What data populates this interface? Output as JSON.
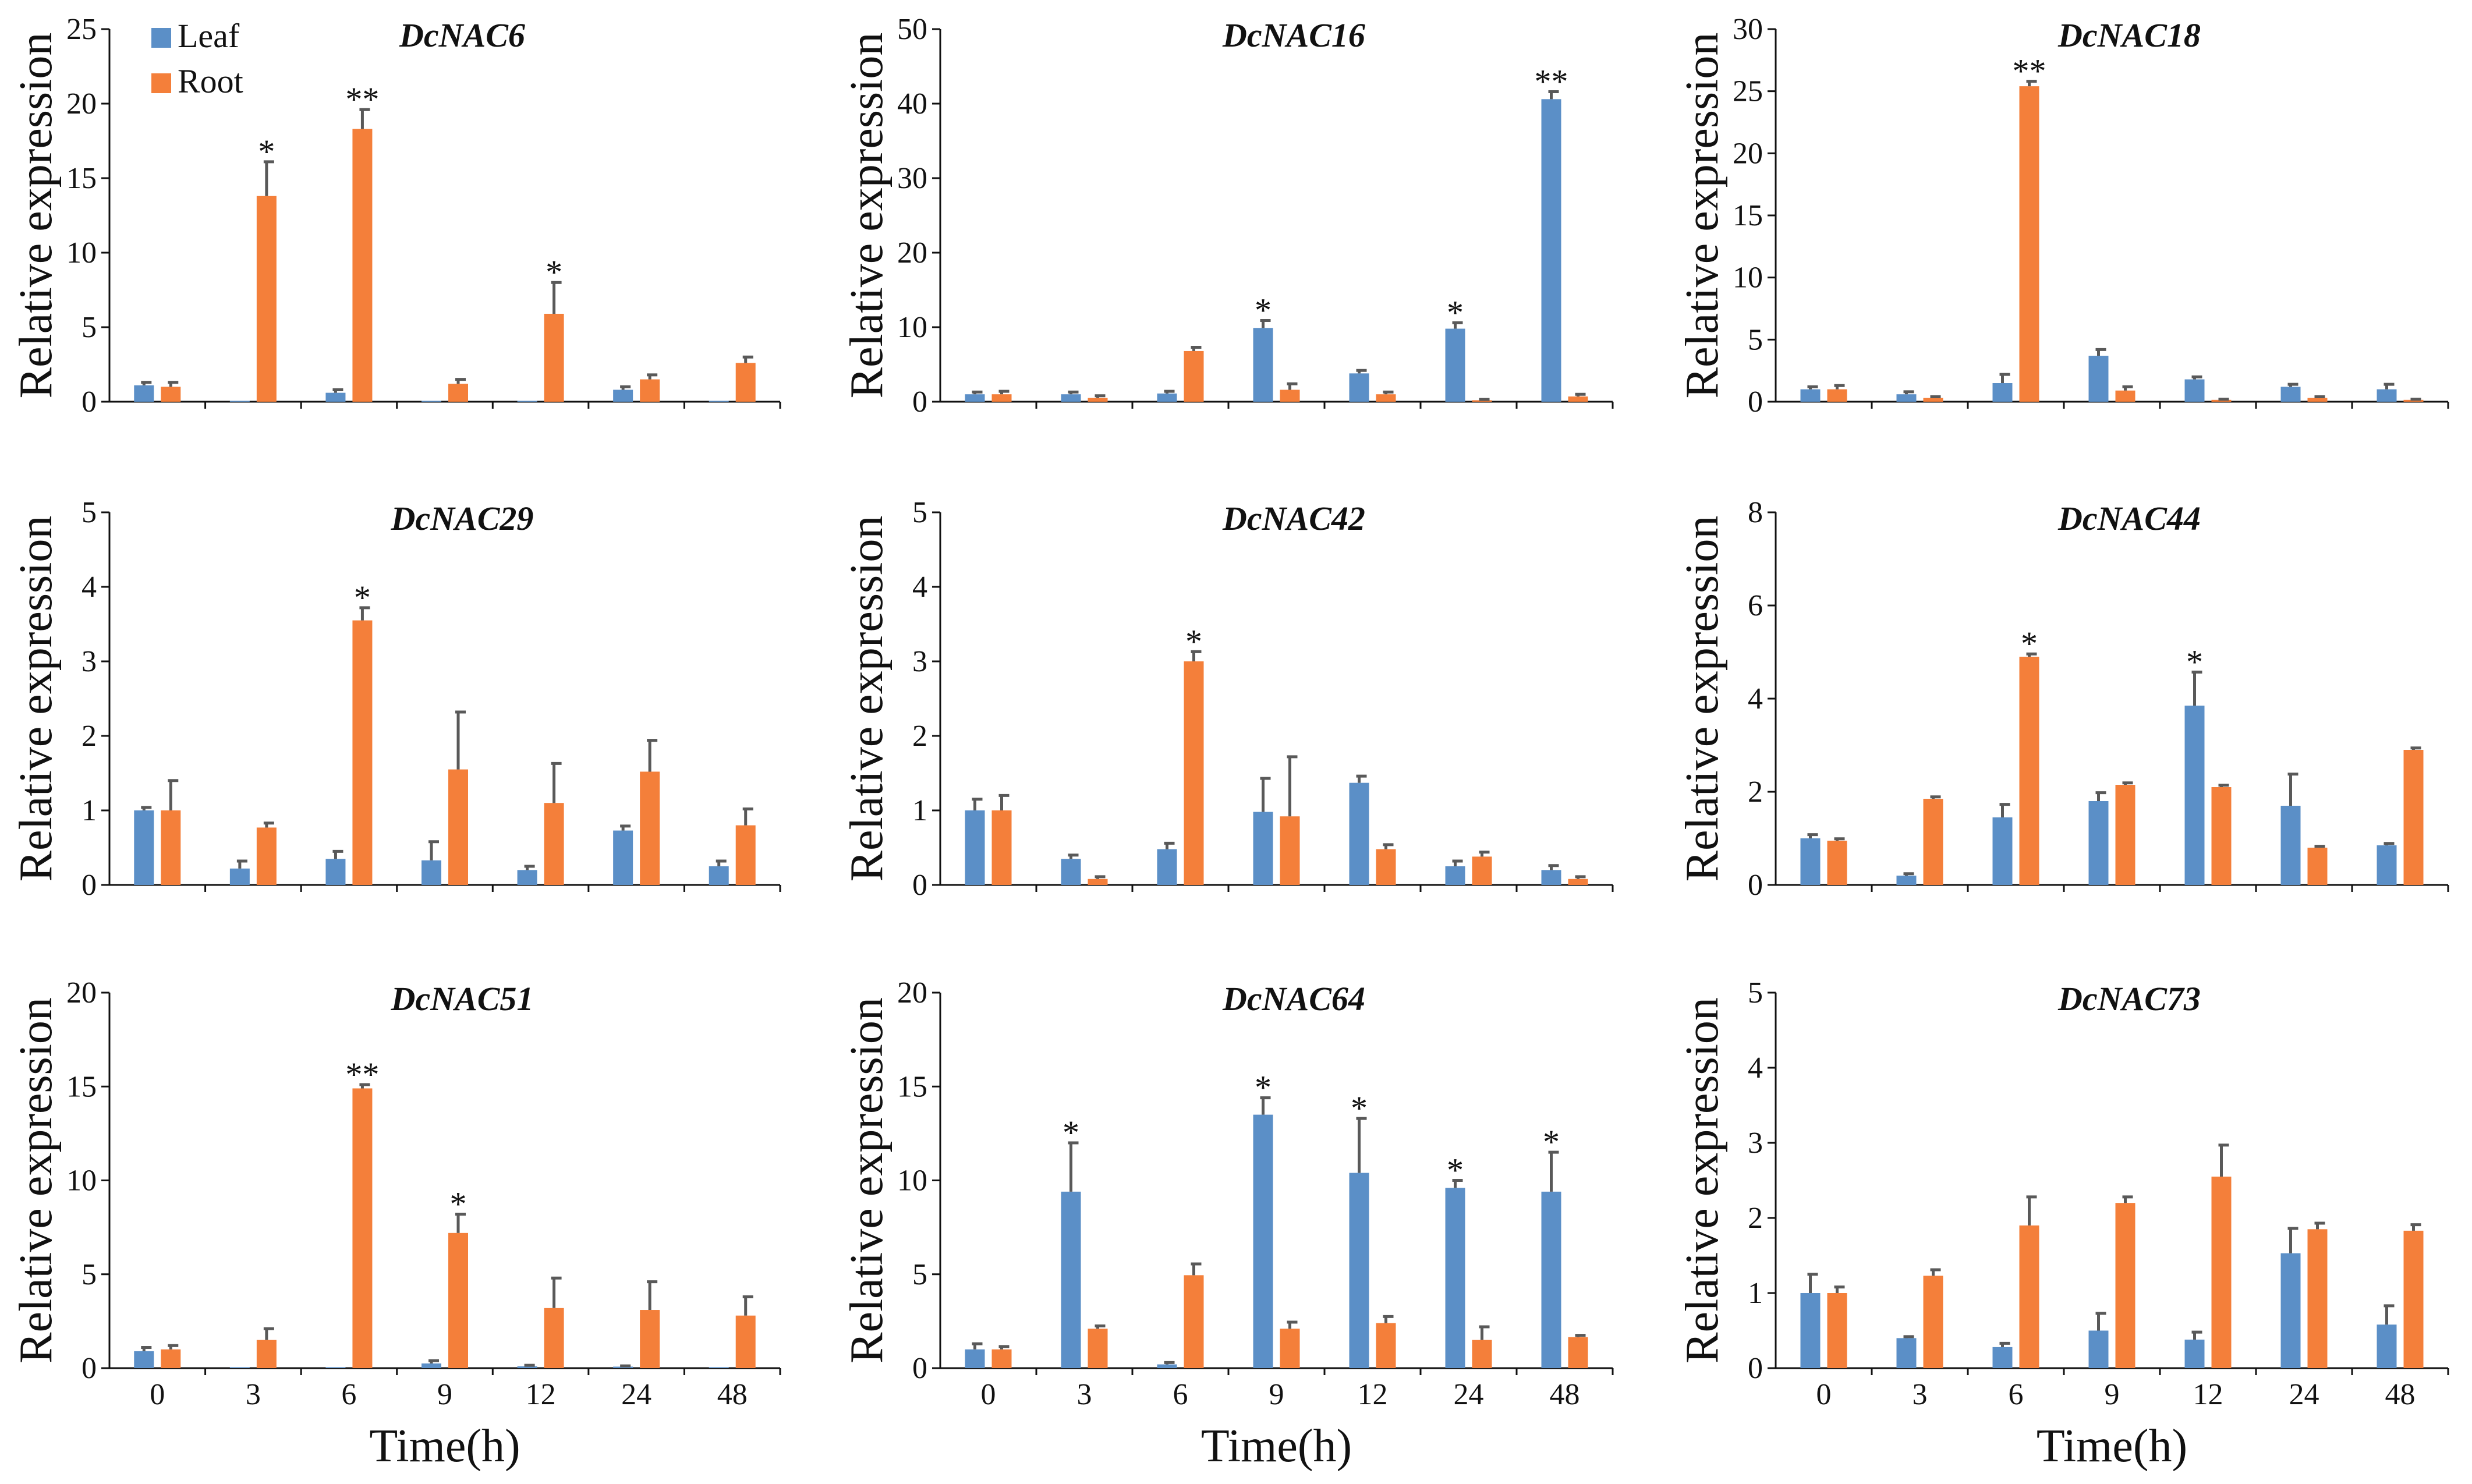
{
  "figure": {
    "legend": [
      {
        "name": "Leaf",
        "color": "#5B8FC7"
      },
      {
        "name": "Root",
        "color": "#F47F3A"
      }
    ],
    "error_bar_color": "#595959"
  },
  "chart_data": [
    {
      "type": "bar",
      "title": "DcNAC6",
      "ylabel": "Relative expression",
      "xlabel": "",
      "categories": [
        "0",
        "3",
        "6",
        "9",
        "12",
        "24",
        "48"
      ],
      "ylim": [
        0,
        25
      ],
      "yticks": [
        "0",
        "5",
        "10",
        "15",
        "20",
        "25"
      ],
      "series": [
        {
          "name": "Leaf",
          "values": [
            1.1,
            0.05,
            0.6,
            0.05,
            0.05,
            0.8,
            0.05
          ],
          "errors": [
            0.2,
            0.0,
            0.2,
            0.0,
            0.0,
            0.2,
            0.0
          ]
        },
        {
          "name": "Root",
          "values": [
            1.0,
            13.8,
            18.3,
            1.2,
            5.9,
            1.5,
            2.6
          ],
          "errors": [
            0.3,
            2.3,
            1.3,
            0.3,
            2.1,
            0.3,
            0.4
          ]
        }
      ],
      "annotations": [
        {
          "category": "3",
          "series": "Root",
          "text": "*"
        },
        {
          "category": "6",
          "series": "Root",
          "text": "**"
        },
        {
          "category": "12",
          "series": "Root",
          "text": "*"
        }
      ]
    },
    {
      "type": "bar",
      "title": "DcNAC16",
      "ylabel": "Relative expression",
      "xlabel": "",
      "categories": [
        "0",
        "3",
        "6",
        "9",
        "12",
        "24",
        "48"
      ],
      "ylim": [
        0,
        50
      ],
      "yticks": [
        "0",
        "10",
        "20",
        "30",
        "40",
        "50"
      ],
      "series": [
        {
          "name": "Leaf",
          "values": [
            1.0,
            1.0,
            1.1,
            9.9,
            3.8,
            9.8,
            40.6
          ],
          "errors": [
            0.3,
            0.3,
            0.3,
            1.0,
            0.4,
            0.8,
            1.0
          ]
        },
        {
          "name": "Root",
          "values": [
            1.0,
            0.5,
            6.8,
            1.6,
            1.0,
            0.2,
            0.7
          ],
          "errors": [
            0.4,
            0.3,
            0.5,
            0.8,
            0.3,
            0.1,
            0.3
          ]
        }
      ],
      "annotations": [
        {
          "category": "9",
          "series": "Leaf",
          "text": "*"
        },
        {
          "category": "24",
          "series": "Leaf",
          "text": "*"
        },
        {
          "category": "48",
          "series": "Leaf",
          "text": "**"
        }
      ]
    },
    {
      "type": "bar",
      "title": "DcNAC18",
      "ylabel": "Relative expression",
      "xlabel": "",
      "categories": [
        "0",
        "3",
        "6",
        "9",
        "12",
        "24",
        "48"
      ],
      "ylim": [
        0,
        30
      ],
      "yticks": [
        "0",
        "5",
        "10",
        "15",
        "20",
        "25",
        "30"
      ],
      "series": [
        {
          "name": "Leaf",
          "values": [
            1.0,
            0.6,
            1.5,
            3.7,
            1.8,
            1.2,
            1.0
          ],
          "errors": [
            0.2,
            0.2,
            0.7,
            0.5,
            0.2,
            0.2,
            0.4
          ]
        },
        {
          "name": "Root",
          "values": [
            1.0,
            0.3,
            25.4,
            0.9,
            0.15,
            0.3,
            0.15
          ],
          "errors": [
            0.3,
            0.1,
            0.4,
            0.3,
            0.05,
            0.1,
            0.05
          ]
        }
      ],
      "annotations": [
        {
          "category": "6",
          "series": "Root",
          "text": "**"
        }
      ]
    },
    {
      "type": "bar",
      "title": "DcNAC29",
      "ylabel": "Relative expression",
      "xlabel": "",
      "categories": [
        "0",
        "3",
        "6",
        "9",
        "12",
        "24",
        "48"
      ],
      "ylim": [
        0,
        5
      ],
      "yticks": [
        "0",
        "1",
        "2",
        "3",
        "4",
        "5"
      ],
      "series": [
        {
          "name": "Leaf",
          "values": [
            1.0,
            0.22,
            0.35,
            0.33,
            0.2,
            0.73,
            0.25
          ],
          "errors": [
            0.04,
            0.1,
            0.1,
            0.25,
            0.05,
            0.06,
            0.07
          ]
        },
        {
          "name": "Root",
          "values": [
            1.0,
            0.77,
            3.55,
            1.55,
            1.1,
            1.52,
            0.8
          ],
          "errors": [
            0.4,
            0.06,
            0.17,
            0.77,
            0.53,
            0.42,
            0.22
          ]
        }
      ],
      "annotations": [
        {
          "category": "6",
          "series": "Root",
          "text": "*"
        }
      ]
    },
    {
      "type": "bar",
      "title": "DcNAC42",
      "ylabel": "Relative expression",
      "xlabel": "",
      "categories": [
        "0",
        "3",
        "6",
        "9",
        "12",
        "24",
        "48"
      ],
      "ylim": [
        0,
        5
      ],
      "yticks": [
        "0",
        "1",
        "2",
        "3",
        "4",
        "5"
      ],
      "series": [
        {
          "name": "Leaf",
          "values": [
            1.0,
            0.35,
            0.48,
            0.98,
            1.37,
            0.25,
            0.2
          ],
          "errors": [
            0.15,
            0.05,
            0.08,
            0.45,
            0.09,
            0.07,
            0.06
          ]
        },
        {
          "name": "Root",
          "values": [
            1.0,
            0.08,
            3.0,
            0.92,
            0.48,
            0.38,
            0.08
          ],
          "errors": [
            0.2,
            0.03,
            0.13,
            0.8,
            0.06,
            0.06,
            0.03
          ]
        }
      ],
      "annotations": [
        {
          "category": "6",
          "series": "Root",
          "text": "*"
        }
      ]
    },
    {
      "type": "bar",
      "title": "DcNAC44",
      "ylabel": "Relative expression",
      "xlabel": "",
      "categories": [
        "0",
        "3",
        "6",
        "9",
        "12",
        "24",
        "48"
      ],
      "ylim": [
        0,
        8
      ],
      "yticks": [
        "0",
        "2",
        "4",
        "6",
        "8"
      ],
      "series": [
        {
          "name": "Leaf",
          "values": [
            1.0,
            0.2,
            1.45,
            1.8,
            3.85,
            1.7,
            0.85
          ],
          "errors": [
            0.08,
            0.04,
            0.28,
            0.18,
            0.72,
            0.68,
            0.04
          ]
        },
        {
          "name": "Root",
          "values": [
            0.95,
            1.85,
            4.9,
            2.15,
            2.1,
            0.8,
            2.9
          ],
          "errors": [
            0.04,
            0.04,
            0.06,
            0.04,
            0.04,
            0.03,
            0.04
          ]
        }
      ],
      "annotations": [
        {
          "category": "6",
          "series": "Root",
          "text": "*"
        },
        {
          "category": "12",
          "series": "Leaf",
          "text": "*"
        }
      ]
    },
    {
      "type": "bar",
      "title": "DcNAC51",
      "ylabel": "Relative expression",
      "xlabel": "Time(h)",
      "categories": [
        "0",
        "3",
        "6",
        "9",
        "12",
        "24",
        "48"
      ],
      "ylim": [
        0,
        20
      ],
      "yticks": [
        "0",
        "5",
        "10",
        "15",
        "20"
      ],
      "series": [
        {
          "name": "Leaf",
          "values": [
            0.9,
            0.05,
            0.05,
            0.25,
            0.1,
            0.08,
            0.05
          ],
          "errors": [
            0.2,
            0.0,
            0.0,
            0.15,
            0.05,
            0.04,
            0.0
          ]
        },
        {
          "name": "Root",
          "values": [
            1.0,
            1.5,
            14.9,
            7.2,
            3.2,
            3.1,
            2.8
          ],
          "errors": [
            0.2,
            0.6,
            0.2,
            1.0,
            1.6,
            1.5,
            1.0
          ]
        }
      ],
      "annotations": [
        {
          "category": "6",
          "series": "Root",
          "text": "**"
        },
        {
          "category": "9",
          "series": "Root",
          "text": "*"
        }
      ]
    },
    {
      "type": "bar",
      "title": "DcNAC64",
      "ylabel": "Relative expression",
      "xlabel": "Time(h)",
      "categories": [
        "0",
        "3",
        "6",
        "9",
        "12",
        "24",
        "48"
      ],
      "ylim": [
        0,
        20
      ],
      "yticks": [
        "0",
        "5",
        "10",
        "15",
        "20"
      ],
      "series": [
        {
          "name": "Leaf",
          "values": [
            1.0,
            9.4,
            0.2,
            13.5,
            10.4,
            9.6,
            9.4
          ],
          "errors": [
            0.3,
            2.6,
            0.1,
            0.9,
            2.9,
            0.4,
            2.1
          ]
        },
        {
          "name": "Root",
          "values": [
            1.0,
            2.1,
            4.95,
            2.1,
            2.4,
            1.5,
            1.65
          ],
          "errors": [
            0.15,
            0.15,
            0.6,
            0.35,
            0.35,
            0.7,
            0.1
          ]
        }
      ],
      "annotations": [
        {
          "category": "3",
          "series": "Leaf",
          "text": "*"
        },
        {
          "category": "9",
          "series": "Leaf",
          "text": "*"
        },
        {
          "category": "12",
          "series": "Leaf",
          "text": "*"
        },
        {
          "category": "24",
          "series": "Leaf",
          "text": "*"
        },
        {
          "category": "48",
          "series": "Leaf",
          "text": "*"
        }
      ]
    },
    {
      "type": "bar",
      "title": "DcNAC73",
      "ylabel": "Relative expression",
      "xlabel": "Time(h)",
      "categories": [
        "0",
        "3",
        "6",
        "9",
        "12",
        "24",
        "48"
      ],
      "ylim": [
        0,
        5
      ],
      "yticks": [
        "0",
        "1",
        "2",
        "3",
        "4",
        "5"
      ],
      "series": [
        {
          "name": "Leaf",
          "values": [
            1.0,
            0.4,
            0.28,
            0.5,
            0.38,
            1.53,
            0.58
          ],
          "errors": [
            0.25,
            0.02,
            0.05,
            0.23,
            0.1,
            0.33,
            0.25
          ]
        },
        {
          "name": "Root",
          "values": [
            1.0,
            1.23,
            1.9,
            2.2,
            2.55,
            1.85,
            1.83
          ],
          "errors": [
            0.08,
            0.08,
            0.38,
            0.08,
            0.42,
            0.08,
            0.08
          ]
        }
      ],
      "annotations": []
    }
  ]
}
